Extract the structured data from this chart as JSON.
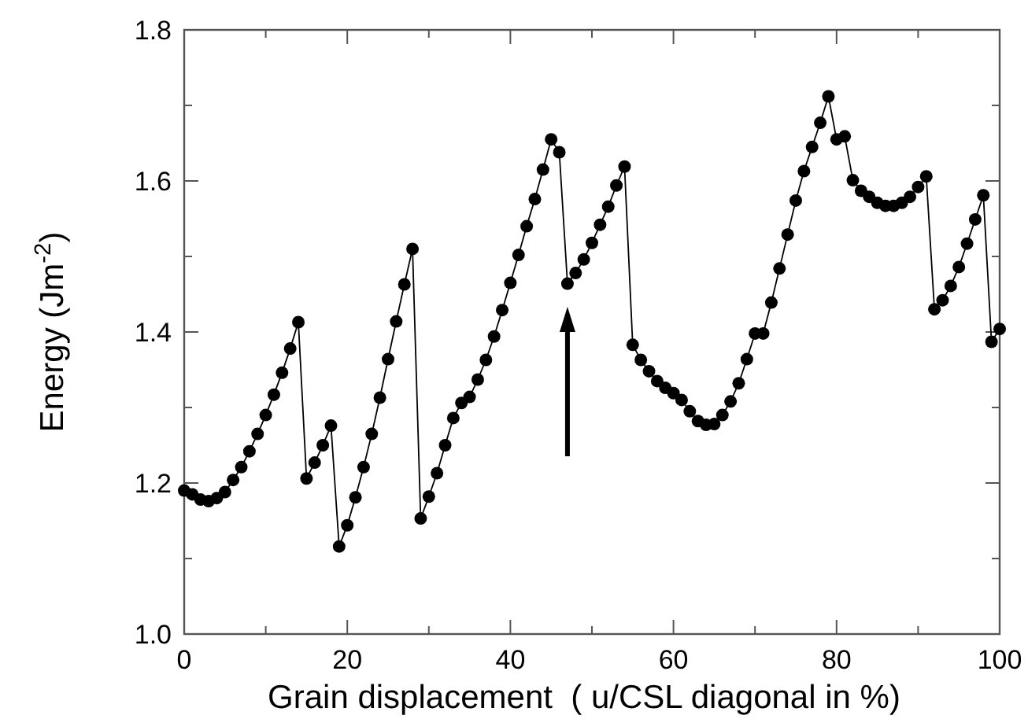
{
  "chart_data": {
    "type": "line",
    "xlabel": "Grain displacement  ( u/CSL diagonal in %)",
    "ylabel": "Energy (Jm$^{-2}$)",
    "x": [
      0,
      1,
      2,
      3,
      4,
      5,
      6,
      7,
      8,
      9,
      10,
      11,
      12,
      13,
      14,
      15,
      16,
      17,
      18,
      19,
      20,
      21,
      22,
      23,
      24,
      25,
      26,
      27,
      28,
      29,
      30,
      31,
      32,
      33,
      34,
      35,
      36,
      37,
      38,
      39,
      40,
      41,
      42,
      43,
      44,
      45,
      46,
      47,
      48,
      49,
      50,
      51,
      52,
      53,
      54,
      55,
      56,
      57,
      58,
      59,
      60,
      61,
      62,
      63,
      64,
      65,
      66,
      67,
      68,
      69,
      70,
      71,
      72,
      73,
      74,
      75,
      76,
      77,
      78,
      79,
      80,
      81,
      82,
      83,
      84,
      85,
      86,
      87,
      88,
      89,
      90,
      91,
      92,
      93,
      94,
      95,
      96,
      97,
      98,
      99,
      100
    ],
    "series": [
      {
        "color": "#000000",
        "values": [
          1.19,
          1.185,
          1.178,
          1.176,
          1.18,
          1.188,
          1.204,
          1.221,
          1.242,
          1.265,
          1.29,
          1.317,
          1.346,
          1.378,
          1.413,
          1.206,
          1.227,
          1.25,
          1.276,
          1.116,
          1.144,
          1.181,
          1.221,
          1.265,
          1.313,
          1.364,
          1.414,
          1.463,
          1.51,
          1.153,
          1.182,
          1.213,
          1.25,
          1.286,
          1.306,
          1.314,
          1.337,
          1.363,
          1.394,
          1.429,
          1.465,
          1.502,
          1.54,
          1.576,
          1.615,
          1.655,
          1.638,
          1.464,
          1.478,
          1.496,
          1.518,
          1.542,
          1.566,
          1.594,
          1.619,
          1.383,
          1.363,
          1.348,
          1.335,
          1.326,
          1.319,
          1.31,
          1.295,
          1.282,
          1.277,
          1.278,
          1.29,
          1.308,
          1.332,
          1.364,
          1.398,
          1.398,
          1.439,
          1.484,
          1.529,
          1.574,
          1.613,
          1.645,
          1.677,
          1.712,
          1.655,
          1.659,
          1.601,
          1.587,
          1.579,
          1.571,
          1.567,
          1.567,
          1.571,
          1.579,
          1.592,
          1.606,
          1.43,
          1.442,
          1.461,
          1.486,
          1.517,
          1.549,
          1.581,
          1.387,
          1.404
        ]
      }
    ],
    "xlim": [
      0,
      100
    ],
    "ylim": [
      1.0,
      1.8
    ],
    "xticks": [
      0,
      {
        "value": 10,
        "label": null
      },
      20,
      {
        "value": 30,
        "label": null
      },
      40,
      {
        "value": 50,
        "label": null
      },
      60,
      {
        "value": 70,
        "label": null
      },
      80,
      {
        "value": 90,
        "label": null
      },
      100
    ],
    "yticks": [
      {
        "value": 1.0,
        "label": "1.0"
      },
      {
        "value": 1.1,
        "label": null
      },
      1.2,
      {
        "value": 1.3,
        "label": null
      },
      1.4,
      {
        "value": 1.5,
        "label": null
      },
      1.6,
      {
        "value": 1.7,
        "label": null
      },
      1.8
    ],
    "marker": "circle",
    "line_style": "solid",
    "grid": false
  }
}
